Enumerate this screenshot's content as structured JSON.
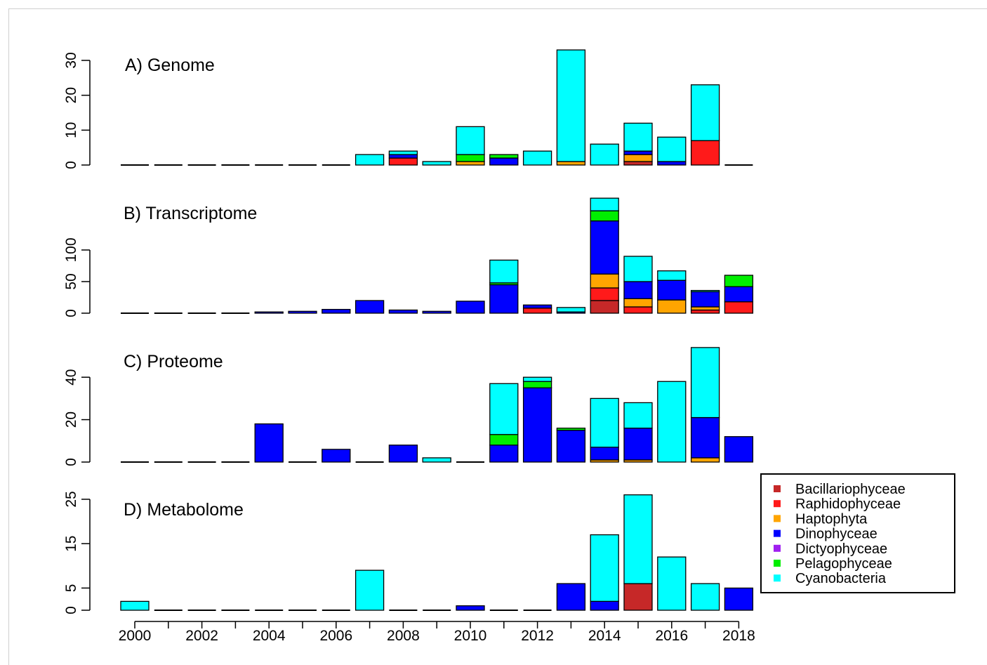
{
  "chart_data": [
    {
      "type": "bar",
      "title": "A) Genome",
      "x": [
        2000,
        2001,
        2002,
        2003,
        2004,
        2005,
        2006,
        2007,
        2008,
        2009,
        2010,
        2011,
        2012,
        2013,
        2014,
        2015,
        2016,
        2017,
        2018
      ],
      "ylim": [
        0,
        30
      ],
      "yticks": [
        0,
        10,
        20,
        30
      ],
      "series": [
        {
          "name": "Bacillariophyceae",
          "values": [
            0,
            0,
            0,
            0,
            0,
            0,
            0,
            0,
            0,
            0,
            0,
            0,
            0,
            0,
            0,
            1,
            0,
            0,
            0
          ]
        },
        {
          "name": "Raphidophyceae",
          "values": [
            0,
            0,
            0,
            0,
            0,
            0,
            0,
            0,
            2,
            0,
            0,
            0,
            0,
            0,
            0,
            0,
            0,
            7,
            0
          ]
        },
        {
          "name": "Haptophyta",
          "values": [
            0,
            0,
            0,
            0,
            0,
            0,
            0,
            0,
            0,
            0,
            1,
            0,
            0,
            1,
            0,
            2,
            0,
            0,
            0
          ]
        },
        {
          "name": "Dinophyceae",
          "values": [
            0,
            0,
            0,
            0,
            0,
            0,
            0,
            0,
            1,
            0,
            0,
            2,
            0,
            0,
            0,
            1,
            1,
            0,
            0
          ]
        },
        {
          "name": "Dictyophyceae",
          "values": [
            0,
            0,
            0,
            0,
            0,
            0,
            0,
            0,
            0,
            0,
            0,
            0,
            0,
            0,
            0,
            0,
            0,
            0,
            0
          ]
        },
        {
          "name": "Pelagophyceae",
          "values": [
            0,
            0,
            0,
            0,
            0,
            0,
            0,
            0,
            0,
            0,
            2,
            1,
            0,
            0,
            0,
            0,
            0,
            0,
            0
          ]
        },
        {
          "name": "Cyanobacteria",
          "values": [
            0,
            0,
            0,
            0,
            0,
            0,
            0,
            3,
            1,
            1,
            8,
            0,
            4,
            32,
            6,
            8,
            7,
            16,
            0
          ]
        }
      ]
    },
    {
      "type": "bar",
      "title": "B) Transcriptome",
      "x": [
        2000,
        2001,
        2002,
        2003,
        2004,
        2005,
        2006,
        2007,
        2008,
        2009,
        2010,
        2011,
        2012,
        2013,
        2014,
        2015,
        2016,
        2017,
        2018
      ],
      "ylim": [
        0,
        150
      ],
      "yticks": [
        0,
        50,
        100
      ],
      "series": [
        {
          "name": "Bacillariophyceae",
          "values": [
            0,
            0,
            0,
            0,
            0,
            0,
            0,
            0,
            0,
            0,
            0,
            0,
            0,
            0,
            20,
            0,
            0,
            0,
            0
          ]
        },
        {
          "name": "Raphidophyceae",
          "values": [
            0,
            0,
            0,
            0,
            0,
            0,
            0,
            0,
            0,
            0,
            0,
            0,
            8,
            0,
            20,
            10,
            0,
            5,
            18
          ]
        },
        {
          "name": "Haptophyta",
          "values": [
            0,
            0,
            0,
            0,
            0,
            0,
            0,
            0,
            0,
            0,
            0,
            0,
            0,
            0,
            22,
            13,
            21,
            5,
            0
          ]
        },
        {
          "name": "Dinophyceae",
          "values": [
            0,
            0,
            0,
            0,
            2,
            3,
            6,
            20,
            5,
            3,
            19,
            45,
            5,
            2,
            84,
            27,
            31,
            24,
            24
          ]
        },
        {
          "name": "Dictyophyceae",
          "values": [
            0,
            0,
            0,
            0,
            0,
            0,
            0,
            0,
            0,
            0,
            0,
            0,
            0,
            0,
            0,
            0,
            0,
            0,
            0
          ]
        },
        {
          "name": "Pelagophyceae",
          "values": [
            0,
            0,
            0,
            0,
            0,
            0,
            0,
            0,
            0,
            0,
            0,
            3,
            0,
            0,
            16,
            0,
            0,
            0,
            18
          ]
        },
        {
          "name": "Cyanobacteria",
          "values": [
            0,
            0,
            0,
            0,
            0,
            0,
            0,
            0,
            0,
            0,
            0,
            36,
            0,
            7,
            20,
            40,
            15,
            2,
            0
          ]
        }
      ]
    },
    {
      "type": "bar",
      "title": "C) Proteome",
      "x": [
        2000,
        2001,
        2002,
        2003,
        2004,
        2005,
        2006,
        2007,
        2008,
        2009,
        2010,
        2011,
        2012,
        2013,
        2014,
        2015,
        2016,
        2017,
        2018
      ],
      "ylim": [
        0,
        50
      ],
      "yticks": [
        0,
        20,
        40
      ],
      "series": [
        {
          "name": "Bacillariophyceae",
          "values": [
            0,
            0,
            0,
            0,
            0,
            0,
            0,
            0,
            0,
            0,
            0,
            0,
            0,
            0,
            0,
            0,
            0,
            0,
            0
          ]
        },
        {
          "name": "Raphidophyceae",
          "values": [
            0,
            0,
            0,
            0,
            0,
            0,
            0,
            0,
            0,
            0,
            0,
            0,
            0,
            0,
            0,
            0,
            0,
            0,
            0
          ]
        },
        {
          "name": "Haptophyta",
          "values": [
            0,
            0,
            0,
            0,
            0,
            0,
            0,
            0,
            0,
            0,
            0,
            0,
            0,
            0,
            1,
            1,
            0,
            2,
            0
          ]
        },
        {
          "name": "Dinophyceae",
          "values": [
            0,
            0,
            0,
            0,
            18,
            0,
            6,
            0,
            8,
            0,
            0,
            8,
            35,
            15,
            6,
            15,
            0,
            19,
            12
          ]
        },
        {
          "name": "Dictyophyceae",
          "values": [
            0,
            0,
            0,
            0,
            0,
            0,
            0,
            0,
            0,
            0,
            0,
            0,
            0,
            0,
            0,
            0,
            0,
            0,
            0
          ]
        },
        {
          "name": "Pelagophyceae",
          "values": [
            0,
            0,
            0,
            0,
            0,
            0,
            0,
            0,
            0,
            0,
            0,
            5,
            3,
            1,
            0,
            0,
            0,
            0,
            0
          ]
        },
        {
          "name": "Cyanobacteria",
          "values": [
            0,
            0,
            0,
            0,
            0,
            0,
            0,
            0,
            0,
            2,
            0,
            24,
            2,
            0,
            23,
            12,
            38,
            33,
            0
          ]
        }
      ]
    },
    {
      "type": "bar",
      "title": "D) Metabolome",
      "x": [
        2000,
        2001,
        2002,
        2003,
        2004,
        2005,
        2006,
        2007,
        2008,
        2009,
        2010,
        2011,
        2012,
        2013,
        2014,
        2015,
        2016,
        2017,
        2018
      ],
      "ylim": [
        0,
        25
      ],
      "yticks": [
        0,
        5,
        15,
        25
      ],
      "series": [
        {
          "name": "Bacillariophyceae",
          "values": [
            0,
            0,
            0,
            0,
            0,
            0,
            0,
            0,
            0,
            0,
            0,
            0,
            0,
            0,
            0,
            6,
            0,
            0,
            0
          ]
        },
        {
          "name": "Raphidophyceae",
          "values": [
            0,
            0,
            0,
            0,
            0,
            0,
            0,
            0,
            0,
            0,
            0,
            0,
            0,
            0,
            0,
            0,
            0,
            0,
            0
          ]
        },
        {
          "name": "Haptophyta",
          "values": [
            0,
            0,
            0,
            0,
            0,
            0,
            0,
            0,
            0,
            0,
            0,
            0,
            0,
            0,
            0,
            0,
            0,
            0,
            0
          ]
        },
        {
          "name": "Dinophyceae",
          "values": [
            0,
            0,
            0,
            0,
            0,
            0,
            0,
            0,
            0,
            0,
            1,
            0,
            0,
            6,
            2,
            0,
            0,
            0,
            5
          ]
        },
        {
          "name": "Dictyophyceae",
          "values": [
            0,
            0,
            0,
            0,
            0,
            0,
            0,
            0,
            0,
            0,
            0,
            0,
            0,
            0,
            0,
            0,
            0,
            0,
            0
          ]
        },
        {
          "name": "Pelagophyceae",
          "values": [
            0,
            0,
            0,
            0,
            0,
            0,
            0,
            0,
            0,
            0,
            0,
            0,
            0,
            0,
            0,
            0,
            0,
            0,
            0
          ]
        },
        {
          "name": "Cyanobacteria",
          "values": [
            2,
            0,
            0,
            0,
            0,
            0,
            0,
            9,
            0,
            0,
            0,
            0,
            0,
            0,
            15,
            20,
            12,
            6,
            0
          ]
        }
      ]
    }
  ],
  "x_tick_labels": [
    "2000",
    "2002",
    "2004",
    "2006",
    "2008",
    "2010",
    "2012",
    "2014",
    "2016",
    "2018"
  ],
  "legend": {
    "position": "right",
    "items": [
      {
        "label": "Bacillariophyceae",
        "color": "#c62828"
      },
      {
        "label": "Raphidophyceae",
        "color": "#ff1a1a"
      },
      {
        "label": "Haptophyta",
        "color": "#ffa500"
      },
      {
        "label": "Dinophyceae",
        "color": "#0000ff"
      },
      {
        "label": "Dictyophyceae",
        "color": "#a020f0"
      },
      {
        "label": "Pelagophyceae",
        "color": "#00ee00"
      },
      {
        "label": "Cyanobacteria",
        "color": "#00ffff"
      }
    ]
  }
}
